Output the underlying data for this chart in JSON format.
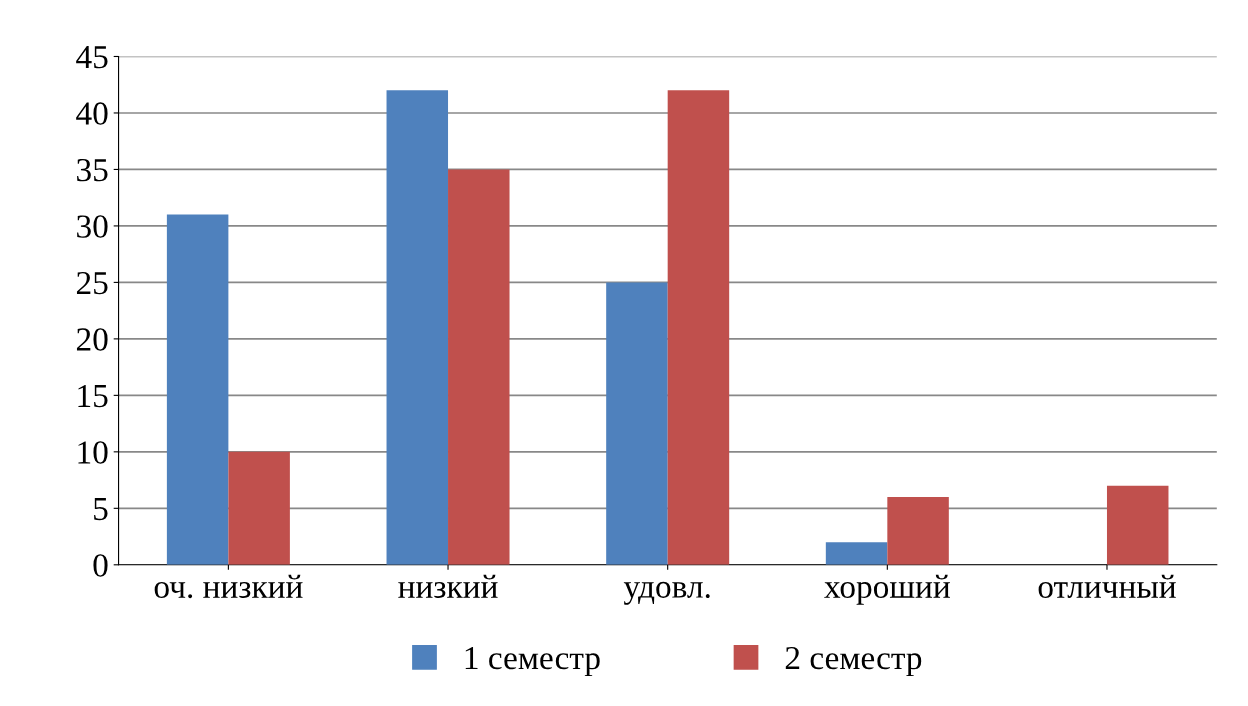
{
  "chart_data": {
    "type": "bar",
    "categories": [
      "оч. низкий",
      "низкий",
      "удовл.",
      "хороший",
      "отличный"
    ],
    "series": [
      {
        "name": "1 семестр",
        "color": "#4f81bd",
        "values": [
          31,
          42,
          25,
          2,
          0
        ]
      },
      {
        "name": "2 семестр",
        "color": "#c0504d",
        "values": [
          10,
          35,
          42,
          6,
          7
        ]
      }
    ],
    "ylim": [
      0,
      45
    ],
    "yticks": [
      0,
      5,
      10,
      15,
      20,
      25,
      30,
      35,
      40,
      45
    ],
    "grid": "y",
    "legend": "bottom"
  }
}
